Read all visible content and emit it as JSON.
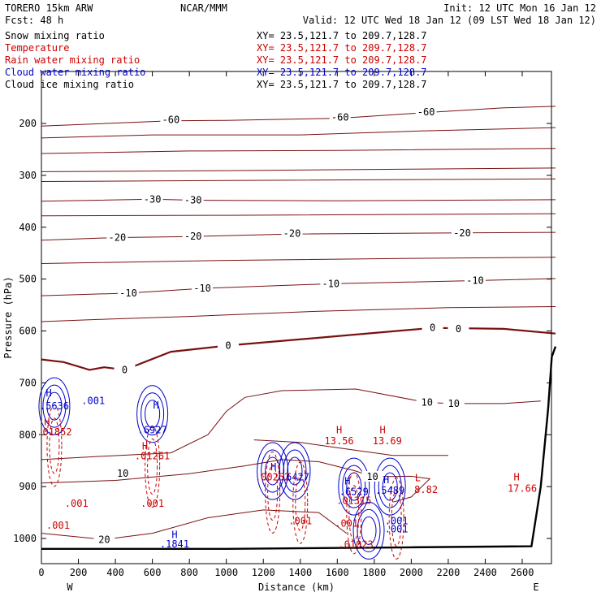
{
  "header": {
    "model": "TORERO  15km ARW",
    "center": "NCAR/MMM",
    "init": "Init: 12 UTC Mon 16 Jan 12",
    "fcst": "Fcst:   48 h",
    "valid": "Valid: 12 UTC Wed 18 Jan 12 (09 LST Wed 18 Jan 12)"
  },
  "fields": [
    {
      "name": "Snow mixing ratio",
      "xy": "XY=  23.5,121.7 to 209.7,128.7",
      "color": "#000000"
    },
    {
      "name": "Temperature",
      "xy": "XY=  23.5,121.7 to 209.7,128.7",
      "color": "#cc0000"
    },
    {
      "name": "Rain water mixing ratio",
      "xy": "XY=  23.5,121.7 to 209.7,128.7",
      "color": "#cc0000"
    },
    {
      "name": "Cloud water mixing ratio",
      "xy": "XY=  23.5,121.7 to 209.7,128.7",
      "color": "#0000cc"
    },
    {
      "name": "Cloud ice mixing ratio",
      "xy": "XY=  23.5,121.7 to 209.7,128.7",
      "color": "#000000"
    }
  ],
  "chart_data": {
    "type": "line",
    "title": "",
    "xlabel": "Distance (km)",
    "ylabel": "Pressure (hPa)",
    "xlim": [
      0,
      2780
    ],
    "ylim": [
      1050,
      100
    ],
    "x_ticks": [
      0,
      200,
      400,
      600,
      800,
      1000,
      1200,
      1400,
      1600,
      1800,
      2000,
      2200,
      2400,
      2600
    ],
    "y_ticks": [
      200,
      300,
      400,
      500,
      600,
      700,
      800,
      900,
      1000
    ],
    "end_labels": {
      "left": "W",
      "right": "E"
    },
    "temperature_labels": [
      {
        "text": "-60",
        "x": 700,
        "p": 193
      },
      {
        "text": "-60",
        "x": 1615,
        "p": 188
      },
      {
        "text": "-60",
        "x": 2080,
        "p": 178
      },
      {
        "text": "-30",
        "x": 600,
        "p": 346
      },
      {
        "text": "-30",
        "x": 820,
        "p": 348
      },
      {
        "text": "-20",
        "x": 410,
        "p": 420
      },
      {
        "text": "-20",
        "x": 820,
        "p": 418
      },
      {
        "text": "-20",
        "x": 1355,
        "p": 412
      },
      {
        "text": "-20",
        "x": 2275,
        "p": 411
      },
      {
        "text": "-10",
        "x": 470,
        "p": 527
      },
      {
        "text": "-10",
        "x": 870,
        "p": 518
      },
      {
        "text": "-10",
        "x": 1565,
        "p": 509
      },
      {
        "text": "-10",
        "x": 2345,
        "p": 503
      },
      {
        "text": "0",
        "x": 450,
        "p": 675
      },
      {
        "text": "0",
        "x": 1010,
        "p": 628
      },
      {
        "text": "0",
        "x": 2115,
        "p": 594
      },
      {
        "text": "0",
        "x": 2255,
        "p": 596
      },
      {
        "text": "10",
        "x": 2085,
        "p": 738
      },
      {
        "text": "10",
        "x": 2230,
        "p": 740
      },
      {
        "text": "10",
        "x": 440,
        "p": 875
      },
      {
        "text": "10",
        "x": 1790,
        "p": 881
      },
      {
        "text": "20",
        "x": 340,
        "p": 1002
      }
    ],
    "annotations": [
      {
        "text": "H",
        "x": 40,
        "p": 720,
        "color": "#0000cc"
      },
      {
        "text": ".5636",
        "x": 70,
        "p": 745,
        "color": "#0000cc"
      },
      {
        "text": ".001",
        "x": 280,
        "p": 735,
        "color": "#0000cc"
      },
      {
        "text": "H",
        "x": 30,
        "p": 775,
        "color": "#cc0000"
      },
      {
        "text": ".01852",
        "x": 70,
        "p": 795,
        "color": "#cc0000"
      },
      {
        "text": "H",
        "x": 620,
        "p": 743,
        "color": "#0000cc"
      },
      {
        "text": ".6927",
        "x": 600,
        "p": 791,
        "color": "#0000cc"
      },
      {
        "text": "H",
        "x": 560,
        "p": 822,
        "color": "#cc0000"
      },
      {
        "text": ".01261",
        "x": 600,
        "p": 841,
        "color": "#cc0000"
      },
      {
        "text": ".001",
        "x": 190,
        "p": 933,
        "color": "#cc0000"
      },
      {
        "text": ".001",
        "x": 600,
        "p": 933,
        "color": "#cc0000"
      },
      {
        "text": ".001",
        "x": 90,
        "p": 975,
        "color": "#cc0000"
      },
      {
        "text": "H",
        "x": 720,
        "p": 993,
        "color": "#0000cc"
      },
      {
        "text": ".1841",
        "x": 720,
        "p": 1011,
        "color": "#0000cc"
      },
      {
        "text": "H",
        "x": 1610,
        "p": 791,
        "color": "#cc0000"
      },
      {
        "text": "13.56",
        "x": 1610,
        "p": 812,
        "color": "#cc0000"
      },
      {
        "text": "H",
        "x": 1845,
        "p": 791,
        "color": "#cc0000"
      },
      {
        "text": "13.69",
        "x": 1870,
        "p": 812,
        "color": "#cc0000"
      },
      {
        "text": "H",
        "x": 1255,
        "p": 862,
        "color": "#0000cc"
      },
      {
        "text": ".00252",
        "x": 1250,
        "p": 882,
        "color": "#cc0000"
      },
      {
        "text": ".6427",
        "x": 1370,
        "p": 882,
        "color": "#0000cc"
      },
      {
        "text": "H",
        "x": 1655,
        "p": 890,
        "color": "#0000cc"
      },
      {
        "text": ".6529",
        "x": 1690,
        "p": 910,
        "color": "#0000cc"
      },
      {
        "text": ".01315",
        "x": 1690,
        "p": 927,
        "color": "#cc0000"
      },
      {
        "text": "H",
        "x": 1865,
        "p": 887,
        "color": "#0000cc"
      },
      {
        "text": ".5489",
        "x": 1885,
        "p": 908,
        "color": "#0000cc"
      },
      {
        "text": "L",
        "x": 2035,
        "p": 883,
        "color": "#cc0000"
      },
      {
        "text": "8.82",
        "x": 2080,
        "p": 906,
        "color": "#cc0000"
      },
      {
        "text": "H",
        "x": 2570,
        "p": 882,
        "color": "#cc0000"
      },
      {
        "text": "17.66",
        "x": 2600,
        "p": 904,
        "color": "#cc0000"
      },
      {
        "text": ".001",
        "x": 1400,
        "p": 966,
        "color": "#cc0000"
      },
      {
        "text": ".001",
        "x": 1650,
        "p": 971,
        "color": "#cc0000"
      },
      {
        "text": ".001",
        "x": 1920,
        "p": 966,
        "color": "#0000cc"
      },
      {
        "text": ".001",
        "x": 1920,
        "p": 982,
        "color": "#0000cc"
      },
      {
        "text": ".01023",
        "x": 1700,
        "p": 1012,
        "color": "#cc0000"
      }
    ],
    "isotherms": [
      {
        "label": "-60",
        "bold": false,
        "points": [
          [
            0,
            205
          ],
          [
            700,
            195
          ],
          [
            1000,
            194
          ],
          [
            1615,
            190
          ],
          [
            2080,
            179
          ],
          [
            2500,
            170
          ],
          [
            2780,
            167
          ]
        ]
      },
      {
        "label": "",
        "bold": false,
        "points": [
          [
            0,
            228
          ],
          [
            600,
            222
          ],
          [
            1400,
            222
          ],
          [
            2000,
            215
          ],
          [
            2780,
            208
          ]
        ]
      },
      {
        "label": "",
        "bold": false,
        "points": [
          [
            0,
            258
          ],
          [
            800,
            253
          ],
          [
            1600,
            252
          ],
          [
            2780,
            248
          ]
        ]
      },
      {
        "label": "",
        "bold": false,
        "points": [
          [
            0,
            293
          ],
          [
            1000,
            291
          ],
          [
            2000,
            288
          ],
          [
            2780,
            286
          ]
        ]
      },
      {
        "label": "",
        "bold": false,
        "points": [
          [
            0,
            312
          ],
          [
            1000,
            310
          ],
          [
            2780,
            307
          ]
        ]
      },
      {
        "label": "-30",
        "bold": false,
        "points": [
          [
            0,
            350
          ],
          [
            600,
            346
          ],
          [
            820,
            348
          ],
          [
            1600,
            349
          ],
          [
            2780,
            347
          ]
        ]
      },
      {
        "label": "",
        "bold": false,
        "points": [
          [
            0,
            378
          ],
          [
            1000,
            377
          ],
          [
            2780,
            374
          ]
        ]
      },
      {
        "label": "-20",
        "bold": false,
        "points": [
          [
            0,
            425
          ],
          [
            410,
            420
          ],
          [
            820,
            418
          ],
          [
            1355,
            413
          ],
          [
            2275,
            411
          ],
          [
            2780,
            410
          ]
        ]
      },
      {
        "label": "",
        "bold": false,
        "points": [
          [
            0,
            470
          ],
          [
            1000,
            464
          ],
          [
            2000,
            460
          ],
          [
            2780,
            458
          ]
        ]
      },
      {
        "label": "-10",
        "bold": false,
        "points": [
          [
            0,
            532
          ],
          [
            470,
            527
          ],
          [
            870,
            518
          ],
          [
            1565,
            509
          ],
          [
            2345,
            503
          ],
          [
            2780,
            499
          ]
        ]
      },
      {
        "label": "",
        "bold": false,
        "points": [
          [
            0,
            582
          ],
          [
            300,
            578
          ],
          [
            800,
            572
          ],
          [
            1500,
            562
          ],
          [
            2200,
            555
          ],
          [
            2780,
            553
          ]
        ]
      },
      {
        "label": "0",
        "bold": true,
        "points": [
          [
            0,
            655
          ],
          [
            120,
            660
          ],
          [
            260,
            675
          ],
          [
            340,
            670
          ],
          [
            450,
            675
          ],
          [
            700,
            640
          ],
          [
            1010,
            628
          ],
          [
            1600,
            610
          ],
          [
            2115,
            594
          ],
          [
            2500,
            596
          ],
          [
            2780,
            605
          ]
        ]
      },
      {
        "label": "10",
        "bold": false,
        "points": [
          [
            0,
            848
          ],
          [
            300,
            842
          ],
          [
            700,
            835
          ],
          [
            900,
            800
          ],
          [
            1000,
            755
          ],
          [
            1100,
            728
          ],
          [
            1300,
            715
          ],
          [
            1700,
            712
          ],
          [
            2085,
            738
          ],
          [
            2230,
            740
          ],
          [
            2500,
            740
          ],
          [
            2700,
            735
          ]
        ]
      },
      {
        "label": "",
        "bold": false,
        "points": [
          [
            0,
            893
          ],
          [
            400,
            888
          ],
          [
            800,
            875
          ],
          [
            1100,
            860
          ],
          [
            1300,
            848
          ],
          [
            1500,
            852
          ],
          [
            1700,
            870
          ],
          [
            1790,
            881
          ],
          [
            2000,
            880
          ],
          [
            2100,
            885
          ],
          [
            2000,
            920
          ],
          [
            1900,
            930
          ]
        ]
      },
      {
        "label": "",
        "bold": false,
        "points": [
          [
            1150,
            810
          ],
          [
            1400,
            815
          ],
          [
            1600,
            825
          ],
          [
            1900,
            840
          ],
          [
            2200,
            840
          ]
        ]
      },
      {
        "label": "20",
        "bold": false,
        "points": [
          [
            0,
            990
          ],
          [
            340,
            1002
          ],
          [
            600,
            990
          ],
          [
            900,
            960
          ],
          [
            1200,
            945
          ],
          [
            1500,
            950
          ],
          [
            1650,
            990
          ]
        ]
      }
    ],
    "ground_surface": [
      [
        0,
        1020
      ],
      [
        1000,
        1020
      ],
      [
        2000,
        1017
      ],
      [
        2650,
        1015
      ],
      [
        2700,
        900
      ],
      [
        2740,
        750
      ],
      [
        2760,
        650
      ],
      [
        2780,
        630
      ]
    ],
    "cloud_water_peaks": [
      {
        "x": 70,
        "p": 745
      },
      {
        "x": 600,
        "p": 760
      },
      {
        "x": 1250,
        "p": 870
      },
      {
        "x": 1370,
        "p": 870
      },
      {
        "x": 1690,
        "p": 900
      },
      {
        "x": 1885,
        "p": 900
      },
      {
        "x": 1770,
        "p": 985
      }
    ],
    "rain_water_peaks": [
      {
        "x": 70,
        "p": 790
      },
      {
        "x": 600,
        "p": 830
      },
      {
        "x": 1250,
        "p": 880
      },
      {
        "x": 1400,
        "p": 900
      },
      {
        "x": 1690,
        "p": 920
      },
      {
        "x": 1920,
        "p": 930
      }
    ]
  }
}
